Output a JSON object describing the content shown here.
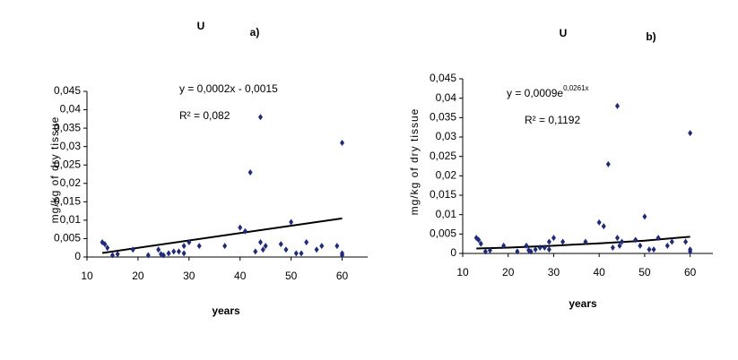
{
  "chart_data": [
    {
      "type": "scatter",
      "title": "U",
      "panel": "a)",
      "equation": "y = 0,0002x - 0,0015",
      "r2": "R² = 0,082",
      "ylabel": "mg/kg of dry tissue",
      "xlabel": "years",
      "x": [
        13,
        13.5,
        14,
        15,
        16,
        19,
        22,
        24,
        24.5,
        25,
        26,
        27,
        28,
        29,
        29,
        30,
        32,
        37,
        40,
        41,
        42,
        43,
        44,
        44,
        44.5,
        45,
        48,
        49,
        50,
        51,
        52,
        53,
        55,
        56,
        59,
        60,
        60,
        60
      ],
      "values": [
        0.004,
        0.0035,
        0.0025,
        0.0005,
        0.0008,
        0.002,
        0.0005,
        0.002,
        0.0008,
        0.0005,
        0.001,
        0.0015,
        0.0015,
        0.003,
        0.001,
        0.004,
        0.003,
        0.003,
        0.008,
        0.007,
        0.023,
        0.0015,
        0.038,
        0.004,
        0.002,
        0.003,
        0.0035,
        0.002,
        0.0095,
        0.001,
        0.001,
        0.004,
        0.002,
        0.003,
        0.003,
        0.031,
        0.001,
        0.0005
      ],
      "color": "#1f2a78",
      "trendline": {
        "x": [
          13,
          60
        ],
        "values": [
          0.0011,
          0.0105
        ],
        "color": "#000000"
      },
      "xlim": [
        10,
        65
      ],
      "ylim": [
        0,
        0.045
      ],
      "xticks": [
        10,
        20,
        30,
        40,
        50,
        60
      ],
      "yticks": [
        0,
        {
          "value": 0.005,
          "label": "0,005"
        },
        {
          "value": 0.01,
          "label": "0,01"
        },
        {
          "value": 0.015,
          "label": "0,015"
        },
        {
          "value": 0.02,
          "label": "0,02"
        },
        {
          "value": 0.025,
          "label": "0,025"
        },
        {
          "value": 0.03,
          "label": "0,03"
        },
        {
          "value": 0.035,
          "label": "0,035"
        },
        {
          "value": 0.04,
          "label": "0,04"
        },
        {
          "value": 0.045,
          "label": "0,045"
        }
      ]
    },
    {
      "type": "scatter",
      "title": "U",
      "panel": "b)",
      "equation": "y = 0,0009e",
      "equation_exponent": "0,0261x",
      "r2": "R² = 0,1192",
      "ylabel": "mg/kg of dry tissue",
      "xlabel": "years",
      "x": [
        13,
        13.5,
        14,
        15,
        16,
        19,
        22,
        24,
        24.5,
        25,
        26,
        27,
        28,
        29,
        29,
        30,
        32,
        37,
        40,
        41,
        42,
        43,
        44,
        44,
        44.5,
        45,
        48,
        49,
        50,
        51,
        52,
        53,
        55,
        56,
        59,
        60,
        60,
        60
      ],
      "values": [
        0.004,
        0.0035,
        0.0025,
        0.0005,
        0.0008,
        0.002,
        0.0005,
        0.002,
        0.0008,
        0.0005,
        0.001,
        0.0015,
        0.0015,
        0.003,
        0.001,
        0.004,
        0.003,
        0.003,
        0.008,
        0.007,
        0.023,
        0.0015,
        0.038,
        0.004,
        0.002,
        0.003,
        0.0035,
        0.002,
        0.0095,
        0.001,
        0.001,
        0.004,
        0.002,
        0.003,
        0.003,
        0.031,
        0.001,
        0.0005
      ],
      "color": "#1f2a78",
      "trendline": {
        "x": [
          13,
          20,
          30,
          40,
          50,
          60
        ],
        "values": [
          0.00126,
          0.0015,
          0.002,
          0.0026,
          0.0033,
          0.0043
        ],
        "color": "#000000"
      },
      "xlim": [
        10,
        65
      ],
      "ylim": [
        0,
        0.045
      ],
      "xticks": [
        10,
        20,
        30,
        40,
        50,
        60
      ],
      "yticks": [
        0,
        {
          "value": 0.005,
          "label": "0,005"
        },
        {
          "value": 0.01,
          "label": "0,01"
        },
        {
          "value": 0.015,
          "label": "0,015"
        },
        {
          "value": 0.02,
          "label": "0,02"
        },
        {
          "value": 0.025,
          "label": "0,025"
        },
        {
          "value": 0.03,
          "label": "0,03"
        },
        {
          "value": 0.035,
          "label": "0,035"
        },
        {
          "value": 0.04,
          "label": "0,04"
        },
        {
          "value": 0.045,
          "label": "0,045"
        }
      ]
    }
  ]
}
